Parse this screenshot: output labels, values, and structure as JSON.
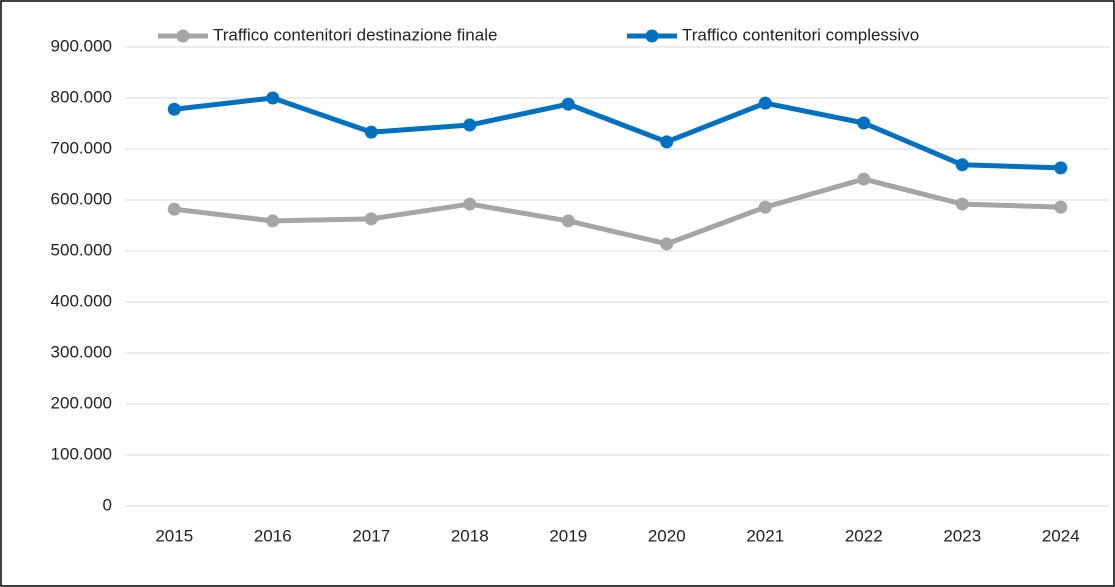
{
  "chart_data": {
    "type": "line",
    "categories": [
      "2015",
      "2016",
      "2017",
      "2018",
      "2019",
      "2020",
      "2021",
      "2022",
      "2023",
      "2024"
    ],
    "series": [
      {
        "name": "Traffico contenitori destinazione finale",
        "color": "#a5a5a5",
        "values": [
          582000,
          559000,
          563000,
          592000,
          559000,
          514000,
          586000,
          641000,
          592000,
          586000
        ]
      },
      {
        "name": "Traffico contenitori complessivo",
        "color": "#0070c0",
        "values": [
          778000,
          800000,
          733000,
          747000,
          788000,
          714000,
          790000,
          751000,
          669000,
          663000
        ]
      }
    ],
    "ylim": [
      0,
      900000
    ],
    "yticks": [
      0,
      {
        "value": 100000,
        "label": "100.000"
      },
      {
        "value": 200000,
        "label": "200.000"
      },
      {
        "value": 300000,
        "label": "300.000"
      },
      {
        "value": 400000,
        "label": "400.000"
      },
      {
        "value": 500000,
        "label": "500.000"
      },
      {
        "value": 600000,
        "label": "600.000"
      },
      {
        "value": 700000,
        "label": "700.000"
      },
      {
        "value": 800000,
        "label": "800.000"
      },
      {
        "value": 900000,
        "label": "900.000"
      }
    ],
    "grid": true,
    "legend": "top"
  }
}
